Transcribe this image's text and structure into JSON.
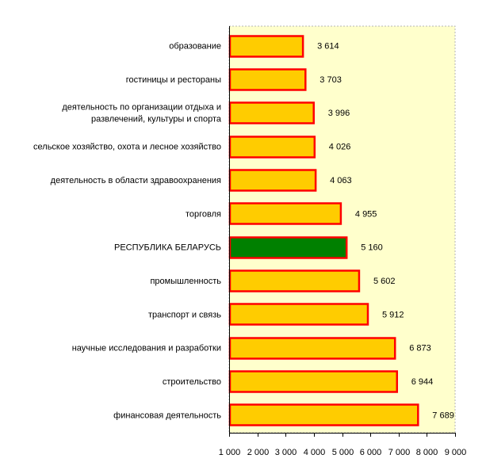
{
  "chart_data": {
    "type": "bar",
    "orientation": "horizontal",
    "title": "",
    "xlabel": "",
    "ylabel": "",
    "grid": false,
    "categories": [
      [
        "образование"
      ],
      [
        "гостиницы и рестораны"
      ],
      [
        "деятельность по организации отдыха и",
        "развлечений, культуры и спорта"
      ],
      [
        "сельское хозяйство, охота и лесное хозяйство"
      ],
      [
        "деятельность в области здравоохранения"
      ],
      [
        "торговля"
      ],
      [
        "РЕСПУБЛИКА БЕЛАРУСЬ"
      ],
      [
        "промышленность"
      ],
      [
        "транспорт и связь"
      ],
      [
        "научные исследования и разработки"
      ],
      [
        "строительство"
      ],
      [
        "финансовая деятельность"
      ]
    ],
    "values": [
      3614,
      3703,
      3996,
      4026,
      4063,
      4955,
      5160,
      5602,
      5912,
      6873,
      6944,
      7689
    ],
    "value_labels": [
      "3 614",
      "3 703",
      "3 996",
      "4 026",
      "4 063",
      "4 955",
      "5 160",
      "5 602",
      "5 912",
      "6 873",
      "6 944",
      "7 689"
    ],
    "highlight_index": 6,
    "xlim": [
      1000,
      9000
    ],
    "x_ticks": [
      1000,
      2000,
      3000,
      4000,
      5000,
      6000,
      7000,
      8000,
      9000
    ],
    "x_tick_labels": [
      "1 000",
      "2 000",
      "3 000",
      "4 000",
      "5 000",
      "6 000",
      "7 000",
      "8 000",
      "9 000"
    ],
    "colors": {
      "bar_fill": "#FFCC00",
      "bar_stroke": "#FF0000",
      "highlight_fill": "#008000",
      "plot_background": "#FFFFCC",
      "plot_border": "#B4B4B4",
      "axis": "#000000"
    }
  }
}
